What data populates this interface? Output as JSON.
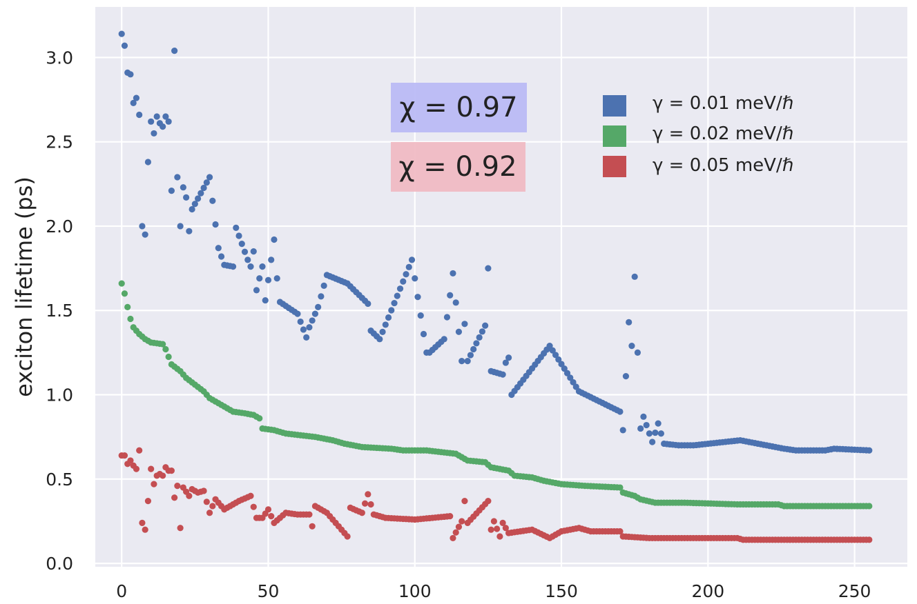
{
  "chart_data": {
    "type": "scatter",
    "title": "",
    "xlabel": "",
    "ylabel": "exciton lifetime (ps)",
    "xlim": [
      -9,
      268
    ],
    "ylim": [
      -0.02,
      3.3
    ],
    "xticks": [
      "0",
      "50",
      "100",
      "150",
      "200",
      "250"
    ],
    "yticks": [
      "0.0",
      "0.5",
      "1.0",
      "1.5",
      "2.0",
      "2.5",
      "3.0"
    ],
    "grid": true,
    "legend_position": "top-right",
    "annotations": [
      {
        "text": "χ = 0.97",
        "color": "#b8b8f5"
      },
      {
        "text": "χ = 0.92",
        "color": "#f0b9c2"
      }
    ],
    "series": [
      {
        "name": "γ = 0.01 meV/ℏ",
        "color": "#4c72b0",
        "anchors": [
          [
            0,
            3.14
          ],
          [
            1,
            3.07
          ],
          [
            2,
            2.91
          ],
          [
            3,
            2.9
          ],
          [
            4,
            2.73
          ],
          [
            5,
            2.76
          ],
          [
            6,
            2.66
          ],
          [
            7,
            2.0
          ],
          [
            8,
            1.95
          ],
          [
            9,
            2.38
          ],
          [
            10,
            2.62
          ],
          [
            11,
            2.55
          ],
          [
            12,
            2.65
          ],
          [
            13,
            2.61
          ],
          [
            14,
            2.59
          ],
          [
            15,
            2.65
          ],
          [
            16,
            2.62
          ],
          [
            17,
            2.21
          ],
          [
            18,
            3.04
          ],
          [
            19,
            2.29
          ],
          [
            20,
            2.0
          ],
          [
            21,
            2.23
          ],
          [
            22,
            2.17
          ],
          [
            23,
            1.97
          ],
          [
            24,
            2.1
          ],
          [
            30,
            2.29
          ],
          [
            33,
            1.87
          ],
          [
            35,
            1.77
          ],
          [
            38,
            1.76
          ],
          [
            39,
            1.99
          ],
          [
            43,
            1.8
          ],
          [
            44,
            1.76
          ],
          [
            45,
            1.85
          ],
          [
            46,
            1.62
          ],
          [
            48,
            1.76
          ],
          [
            49,
            1.56
          ],
          [
            52,
            1.92
          ],
          [
            53,
            1.69
          ],
          [
            54,
            1.55
          ],
          [
            60,
            1.48
          ],
          [
            63,
            1.34
          ],
          [
            64,
            1.4
          ],
          [
            67,
            1.52
          ],
          [
            70,
            1.71
          ],
          [
            77,
            1.66
          ],
          [
            84,
            1.54
          ],
          [
            85,
            1.38
          ],
          [
            88,
            1.33
          ],
          [
            99,
            1.8
          ],
          [
            104,
            1.25
          ],
          [
            105,
            1.25
          ],
          [
            110,
            1.33
          ],
          [
            113,
            1.72
          ],
          [
            116,
            1.2
          ],
          [
            117,
            1.42
          ],
          [
            118,
            1.2
          ],
          [
            124,
            1.41
          ],
          [
            125,
            1.75
          ],
          [
            126,
            1.14
          ],
          [
            130,
            1.12
          ],
          [
            131,
            1.19
          ],
          [
            132,
            1.22
          ],
          [
            133,
            1.0
          ],
          [
            146,
            1.29
          ],
          [
            156,
            1.02
          ],
          [
            170,
            0.9
          ],
          [
            171,
            0.79
          ],
          [
            173,
            1.43
          ],
          [
            174,
            1.29
          ],
          [
            175,
            1.7
          ],
          [
            177,
            0.8
          ],
          [
            178,
            0.87
          ],
          [
            181,
            0.72
          ],
          [
            183,
            0.83
          ],
          [
            185,
            0.71
          ],
          [
            190,
            0.7
          ],
          [
            195,
            0.7
          ],
          [
            211,
            0.73
          ],
          [
            220,
            0.7
          ],
          [
            226,
            0.68
          ],
          [
            230,
            0.67
          ],
          [
            240,
            0.67
          ],
          [
            243,
            0.68
          ],
          [
            255,
            0.67
          ]
        ]
      },
      {
        "name": "γ = 0.02 meV/ℏ",
        "color": "#55a868",
        "anchors": [
          [
            0,
            1.66
          ],
          [
            1,
            1.6
          ],
          [
            2,
            1.52
          ],
          [
            3,
            1.45
          ],
          [
            4,
            1.4
          ],
          [
            6,
            1.36
          ],
          [
            8,
            1.33
          ],
          [
            10,
            1.31
          ],
          [
            14,
            1.3
          ],
          [
            15,
            1.27
          ],
          [
            17,
            1.18
          ],
          [
            20,
            1.14
          ],
          [
            22,
            1.1
          ],
          [
            25,
            1.06
          ],
          [
            28,
            1.02
          ],
          [
            30,
            0.98
          ],
          [
            33,
            0.95
          ],
          [
            36,
            0.92
          ],
          [
            38,
            0.9
          ],
          [
            42,
            0.89
          ],
          [
            45,
            0.88
          ],
          [
            47,
            0.86
          ],
          [
            48,
            0.8
          ],
          [
            52,
            0.79
          ],
          [
            56,
            0.77
          ],
          [
            66,
            0.75
          ],
          [
            72,
            0.73
          ],
          [
            76,
            0.71
          ],
          [
            82,
            0.69
          ],
          [
            92,
            0.68
          ],
          [
            96,
            0.67
          ],
          [
            104,
            0.67
          ],
          [
            114,
            0.65
          ],
          [
            118,
            0.61
          ],
          [
            124,
            0.6
          ],
          [
            126,
            0.57
          ],
          [
            132,
            0.55
          ],
          [
            134,
            0.52
          ],
          [
            140,
            0.51
          ],
          [
            144,
            0.49
          ],
          [
            150,
            0.47
          ],
          [
            158,
            0.46
          ],
          [
            170,
            0.45
          ],
          [
            171,
            0.42
          ],
          [
            175,
            0.4
          ],
          [
            177,
            0.38
          ],
          [
            182,
            0.36
          ],
          [
            192,
            0.36
          ],
          [
            210,
            0.35
          ],
          [
            224,
            0.35
          ],
          [
            226,
            0.34
          ],
          [
            235,
            0.34
          ],
          [
            255,
            0.34
          ]
        ]
      },
      {
        "name": "γ = 0.05 meV/ℏ",
        "color": "#c44e52",
        "anchors": [
          [
            0,
            0.64
          ],
          [
            1,
            0.64
          ],
          [
            2,
            0.59
          ],
          [
            3,
            0.61
          ],
          [
            4,
            0.58
          ],
          [
            5,
            0.56
          ],
          [
            6,
            0.67
          ],
          [
            7,
            0.24
          ],
          [
            8,
            0.2
          ],
          [
            9,
            0.37
          ],
          [
            10,
            0.56
          ],
          [
            11,
            0.47
          ],
          [
            12,
            0.52
          ],
          [
            13,
            0.53
          ],
          [
            14,
            0.52
          ],
          [
            15,
            0.57
          ],
          [
            16,
            0.55
          ],
          [
            17,
            0.55
          ],
          [
            18,
            0.39
          ],
          [
            19,
            0.46
          ],
          [
            20,
            0.21
          ],
          [
            21,
            0.45
          ],
          [
            23,
            0.4
          ],
          [
            24,
            0.44
          ],
          [
            26,
            0.42
          ],
          [
            28,
            0.43
          ],
          [
            30,
            0.3
          ],
          [
            32,
            0.38
          ],
          [
            35,
            0.32
          ],
          [
            40,
            0.37
          ],
          [
            44,
            0.4
          ],
          [
            46,
            0.27
          ],
          [
            48,
            0.27
          ],
          [
            50,
            0.32
          ],
          [
            52,
            0.24
          ],
          [
            56,
            0.3
          ],
          [
            60,
            0.29
          ],
          [
            64,
            0.29
          ],
          [
            65,
            0.22
          ],
          [
            66,
            0.34
          ],
          [
            70,
            0.3
          ],
          [
            77,
            0.16
          ],
          [
            78,
            0.33
          ],
          [
            82,
            0.3
          ],
          [
            84,
            0.41
          ],
          [
            86,
            0.29
          ],
          [
            90,
            0.27
          ],
          [
            100,
            0.26
          ],
          [
            106,
            0.27
          ],
          [
            112,
            0.28
          ],
          [
            113,
            0.15
          ],
          [
            116,
            0.25
          ],
          [
            117,
            0.37
          ],
          [
            118,
            0.24
          ],
          [
            125,
            0.37
          ],
          [
            126,
            0.2
          ],
          [
            127,
            0.25
          ],
          [
            129,
            0.16
          ],
          [
            130,
            0.24
          ],
          [
            132,
            0.18
          ],
          [
            140,
            0.2
          ],
          [
            146,
            0.15
          ],
          [
            150,
            0.19
          ],
          [
            156,
            0.21
          ],
          [
            160,
            0.19
          ],
          [
            170,
            0.19
          ],
          [
            171,
            0.16
          ],
          [
            180,
            0.15
          ],
          [
            210,
            0.15
          ],
          [
            212,
            0.14
          ],
          [
            230,
            0.14
          ],
          [
            255,
            0.14
          ]
        ]
      }
    ]
  }
}
